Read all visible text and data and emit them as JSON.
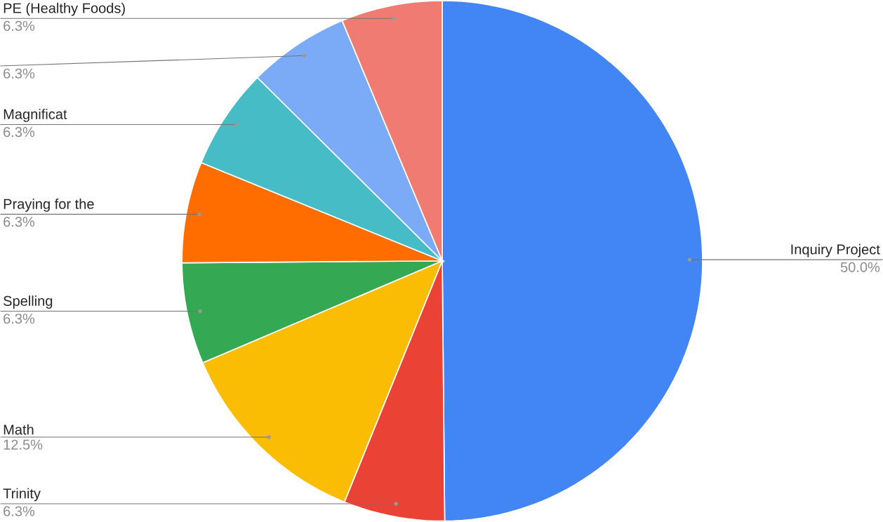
{
  "chart_data": {
    "type": "pie",
    "categories": [
      "Inquiry Project",
      "Trinity",
      "Math",
      "Spelling",
      "Praying for the",
      "Magnificat",
      null,
      "PE (Healthy Foods)"
    ],
    "values": [
      50.0,
      6.3,
      12.5,
      6.3,
      6.3,
      6.3,
      6.3,
      6.3
    ],
    "value_labels": [
      "50.0%",
      "6.3%",
      "12.5%",
      "6.3%",
      "6.3%",
      "6.3%",
      "6.3%",
      "6.3%"
    ],
    "colors": [
      "#4285f4",
      "#ea4335",
      "#fbbc04",
      "#34a853",
      "#ff6d01",
      "#46bdc6",
      "#7baaf7",
      "#f07b72"
    ]
  }
}
